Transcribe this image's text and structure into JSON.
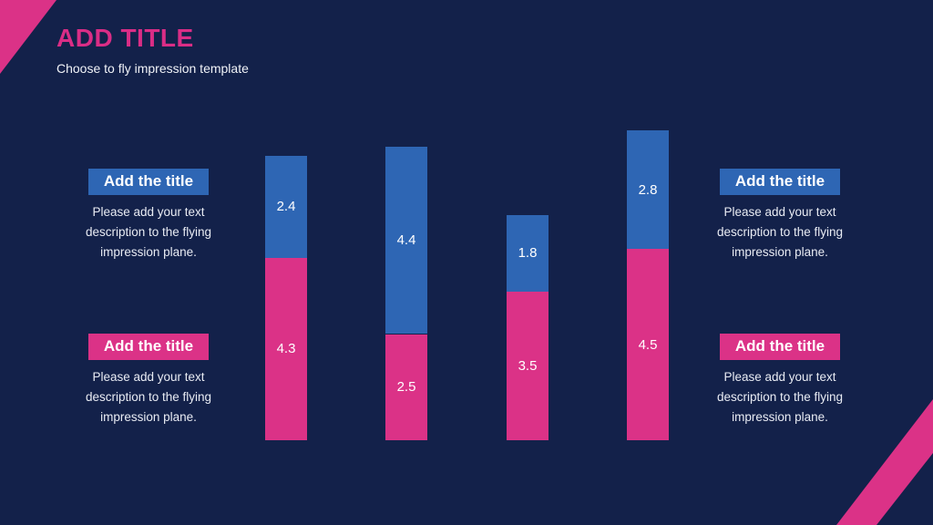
{
  "colors": {
    "background": "#13214a",
    "pink": "#db3287",
    "blue": "#2e66b4",
    "title_pink": "#da2d86",
    "text_light": "#e8ebf3",
    "value_label": "#ffffff"
  },
  "header": {
    "title": "ADD TITLE",
    "subtitle": "Choose to fly impression template"
  },
  "blocks": [
    {
      "id": "left-top",
      "badge": "Add the title",
      "badge_color": "blue",
      "description": "Please add your text\ndescription to the flying\nimpression plane."
    },
    {
      "id": "left-bottom",
      "badge": "Add the title",
      "badge_color": "pink",
      "description": "Please add your text\ndescription to the flying\nimpression plane."
    },
    {
      "id": "right-top",
      "badge": "Add the title",
      "badge_color": "blue",
      "description": "Please add your text\ndescription to the flying\nimpression plane."
    },
    {
      "id": "right-bottom",
      "badge": "Add the title",
      "badge_color": "pink",
      "description": "Please add your text\ndescription to the flying\nimpression plane."
    }
  ],
  "chart_data": {
    "type": "bar",
    "stacked": true,
    "orientation": "vertical",
    "axes_visible": false,
    "grid": false,
    "legend": false,
    "value_labels": "centered in each segment, one decimal",
    "categories": [
      "",
      "",
      "",
      ""
    ],
    "series": [
      {
        "name": "top-segment",
        "color": "#2e66b4",
        "values": [
          2.4,
          4.4,
          1.8,
          2.8
        ]
      },
      {
        "name": "bottom-segment",
        "color": "#db3287",
        "values": [
          4.3,
          2.5,
          3.5,
          4.5
        ]
      }
    ]
  }
}
